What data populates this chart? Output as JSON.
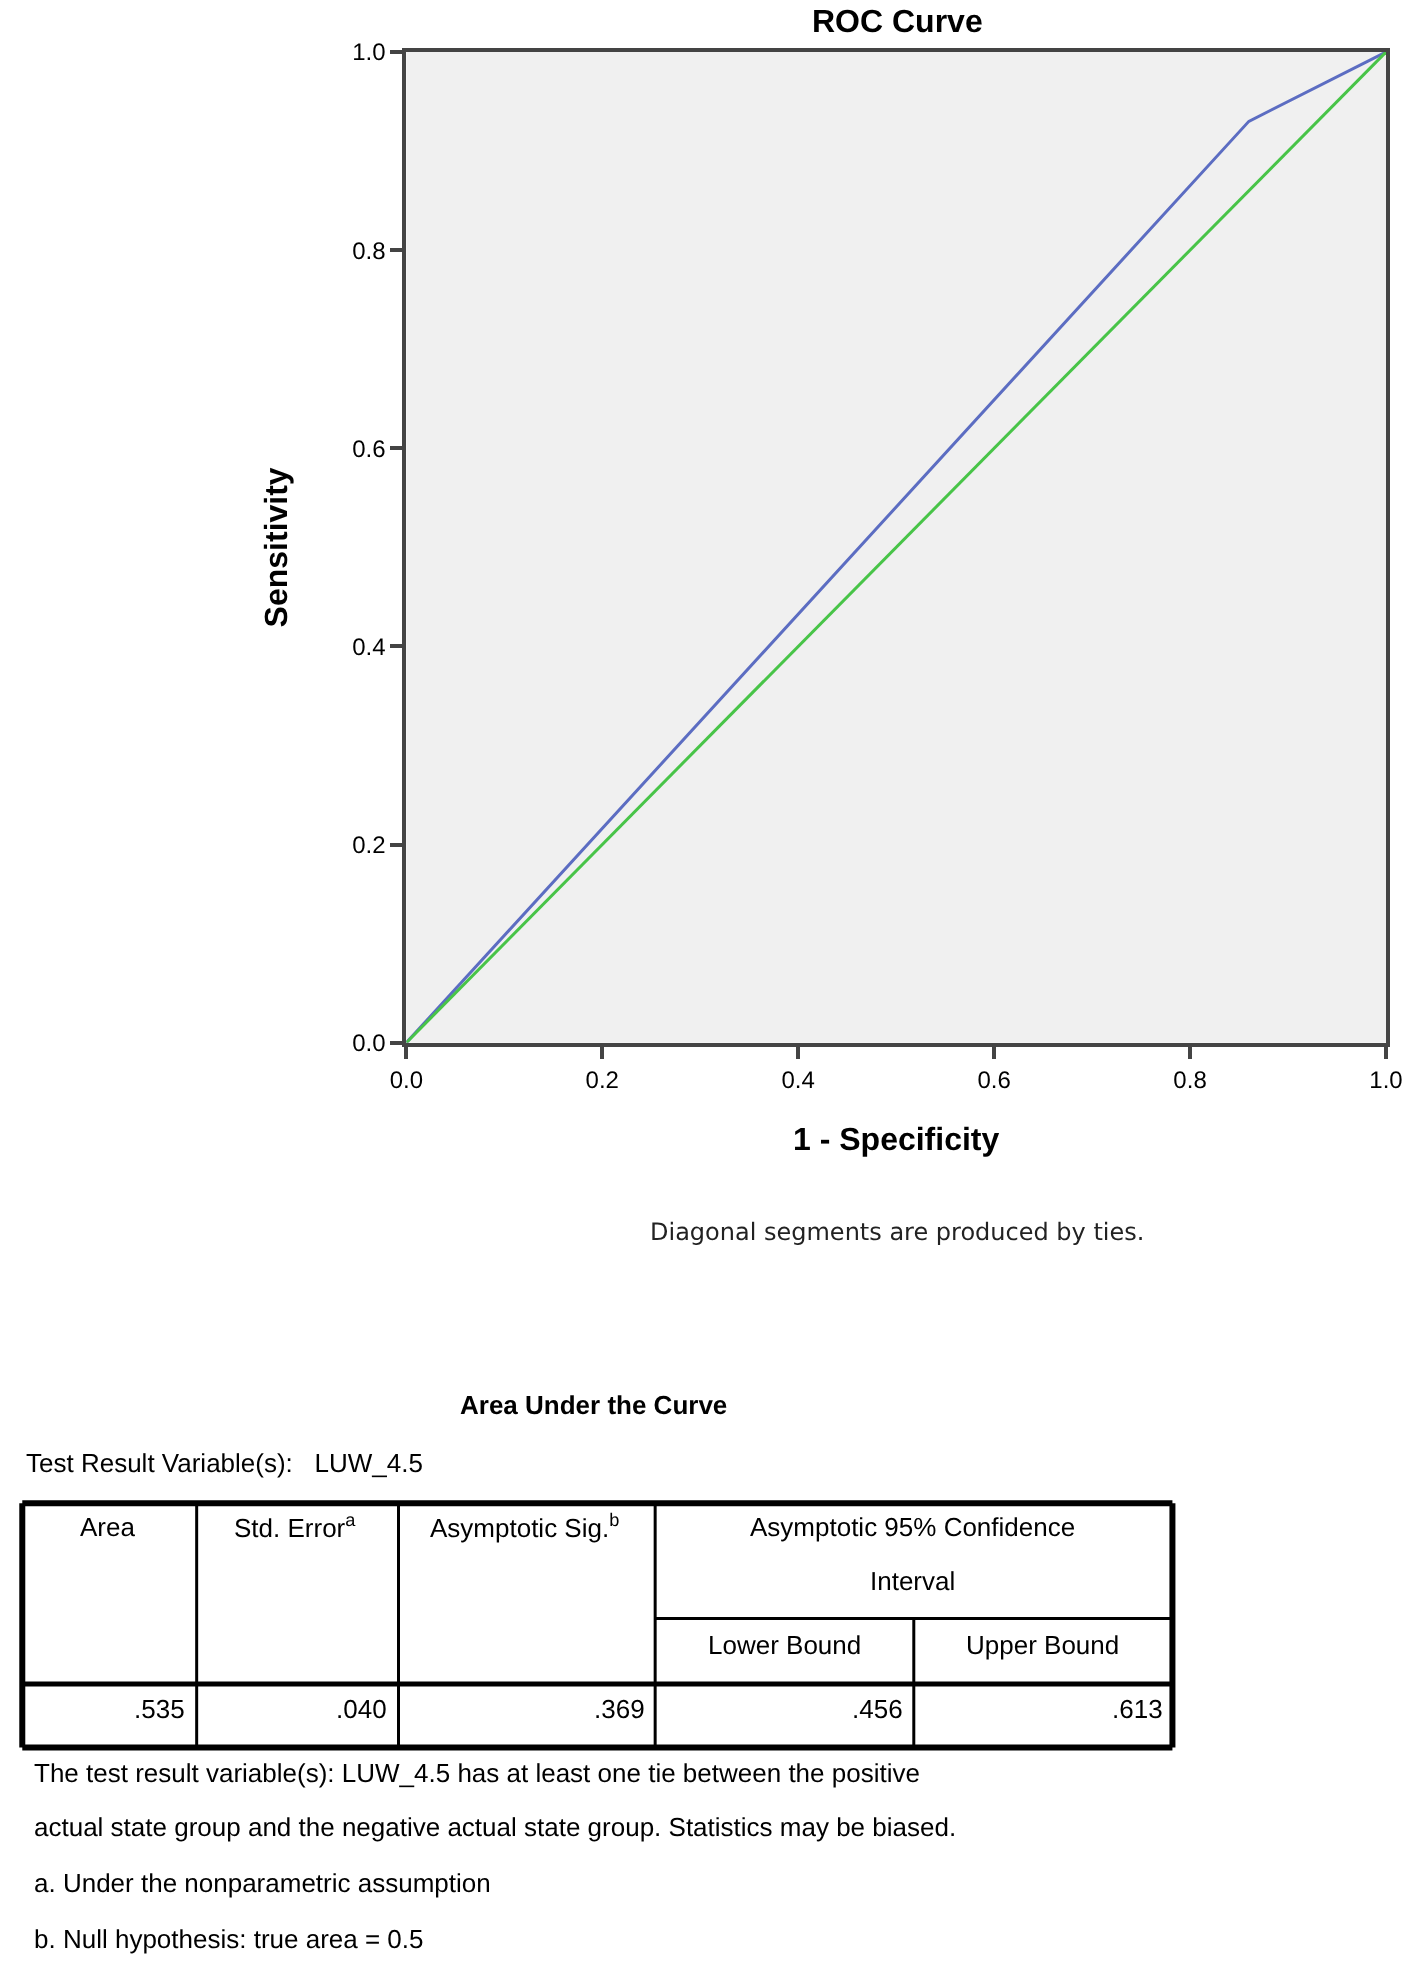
{
  "chart_data": [
    {
      "type": "line",
      "title": "ROC Curve",
      "xlabel": "1 - Specificity",
      "ylabel": "Sensitivity",
      "series": [
        {
          "color": "#5c6dc2",
          "x": [
            0,
            0.86,
            1
          ],
          "values": [
            0,
            0.93,
            1
          ]
        },
        {
          "color": "#48c448",
          "x": [
            0,
            1
          ],
          "values": [
            0,
            1
          ]
        }
      ],
      "xlim": [
        0,
        1
      ],
      "ylim": [
        0,
        1
      ],
      "xticks": [
        {
          "value": 0,
          "label": "0.0"
        },
        {
          "value": 0.2,
          "label": "0.2"
        },
        {
          "value": 0.4,
          "label": "0.4"
        },
        {
          "value": 0.6,
          "label": "0.6"
        },
        {
          "value": 0.8,
          "label": "0.8"
        },
        {
          "value": 1,
          "label": "1.0"
        }
      ],
      "yticks": [
        {
          "value": 0,
          "label": "0.0"
        },
        {
          "value": 0.2,
          "label": "0.2"
        },
        {
          "value": 0.4,
          "label": "0.4"
        },
        {
          "value": 0.6,
          "label": "0.6"
        },
        {
          "value": 0.8,
          "label": "0.8"
        },
        {
          "value": 1,
          "label": "1.0"
        }
      ],
      "grid": false,
      "marker": "none",
      "line_style": "solid",
      "annotations": [
        "Diagonal segments are produced by ties."
      ]
    },
    {
      "type": "other",
      "title": "Area Under the Curve",
      "annotations": [
        "Test Result Variable(s):   LUW_4.5",
        "Area",
        "Std. Error$^{a}$",
        "Asymptotic Sig.$^{b}$",
        "Asymptotic 95% Confidence",
        "Interval",
        "Lower Bound",
        "Upper Bound",
        ".535",
        ".040",
        ".369",
        ".456",
        ".613",
        "The test result variable(s): LUW_4.5 has at least one tie between the positive",
        "actual state group and the negative actual state group. Statistics may be biased.",
        "a. Under the nonparametric assumption",
        "b. Null hypothesis: true area = 0.5"
      ]
    }
  ]
}
